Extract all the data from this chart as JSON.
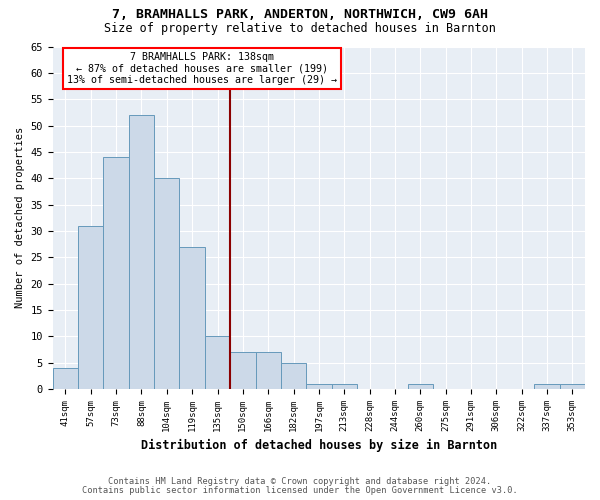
{
  "title1": "7, BRAMHALLS PARK, ANDERTON, NORTHWICH, CW9 6AH",
  "title2": "Size of property relative to detached houses in Barnton",
  "xlabel": "Distribution of detached houses by size in Barnton",
  "ylabel": "Number of detached properties",
  "bin_labels": [
    "41sqm",
    "57sqm",
    "73sqm",
    "88sqm",
    "104sqm",
    "119sqm",
    "135sqm",
    "150sqm",
    "166sqm",
    "182sqm",
    "197sqm",
    "213sqm",
    "228sqm",
    "244sqm",
    "260sqm",
    "275sqm",
    "291sqm",
    "306sqm",
    "322sqm",
    "337sqm",
    "353sqm"
  ],
  "counts": [
    4,
    31,
    44,
    52,
    40,
    27,
    10,
    7,
    7,
    5,
    1,
    1,
    0,
    0,
    1,
    0,
    0,
    0,
    0,
    1,
    1
  ],
  "bar_color": "#ccd9e8",
  "bar_edge_color": "#6699bb",
  "red_line_x": 6.5,
  "annotation_title": "7 BRAMHALLS PARK: 138sqm",
  "annotation_line1": "← 87% of detached houses are smaller (199)",
  "annotation_line2": "13% of semi-detached houses are larger (29) →",
  "ylim": [
    0,
    65
  ],
  "yticks": [
    0,
    5,
    10,
    15,
    20,
    25,
    30,
    35,
    40,
    45,
    50,
    55,
    60,
    65
  ],
  "footer1": "Contains HM Land Registry data © Crown copyright and database right 2024.",
  "footer2": "Contains public sector information licensed under the Open Government Licence v3.0.",
  "bg_color": "#ffffff",
  "plot_bg_color": "#e8eef5"
}
